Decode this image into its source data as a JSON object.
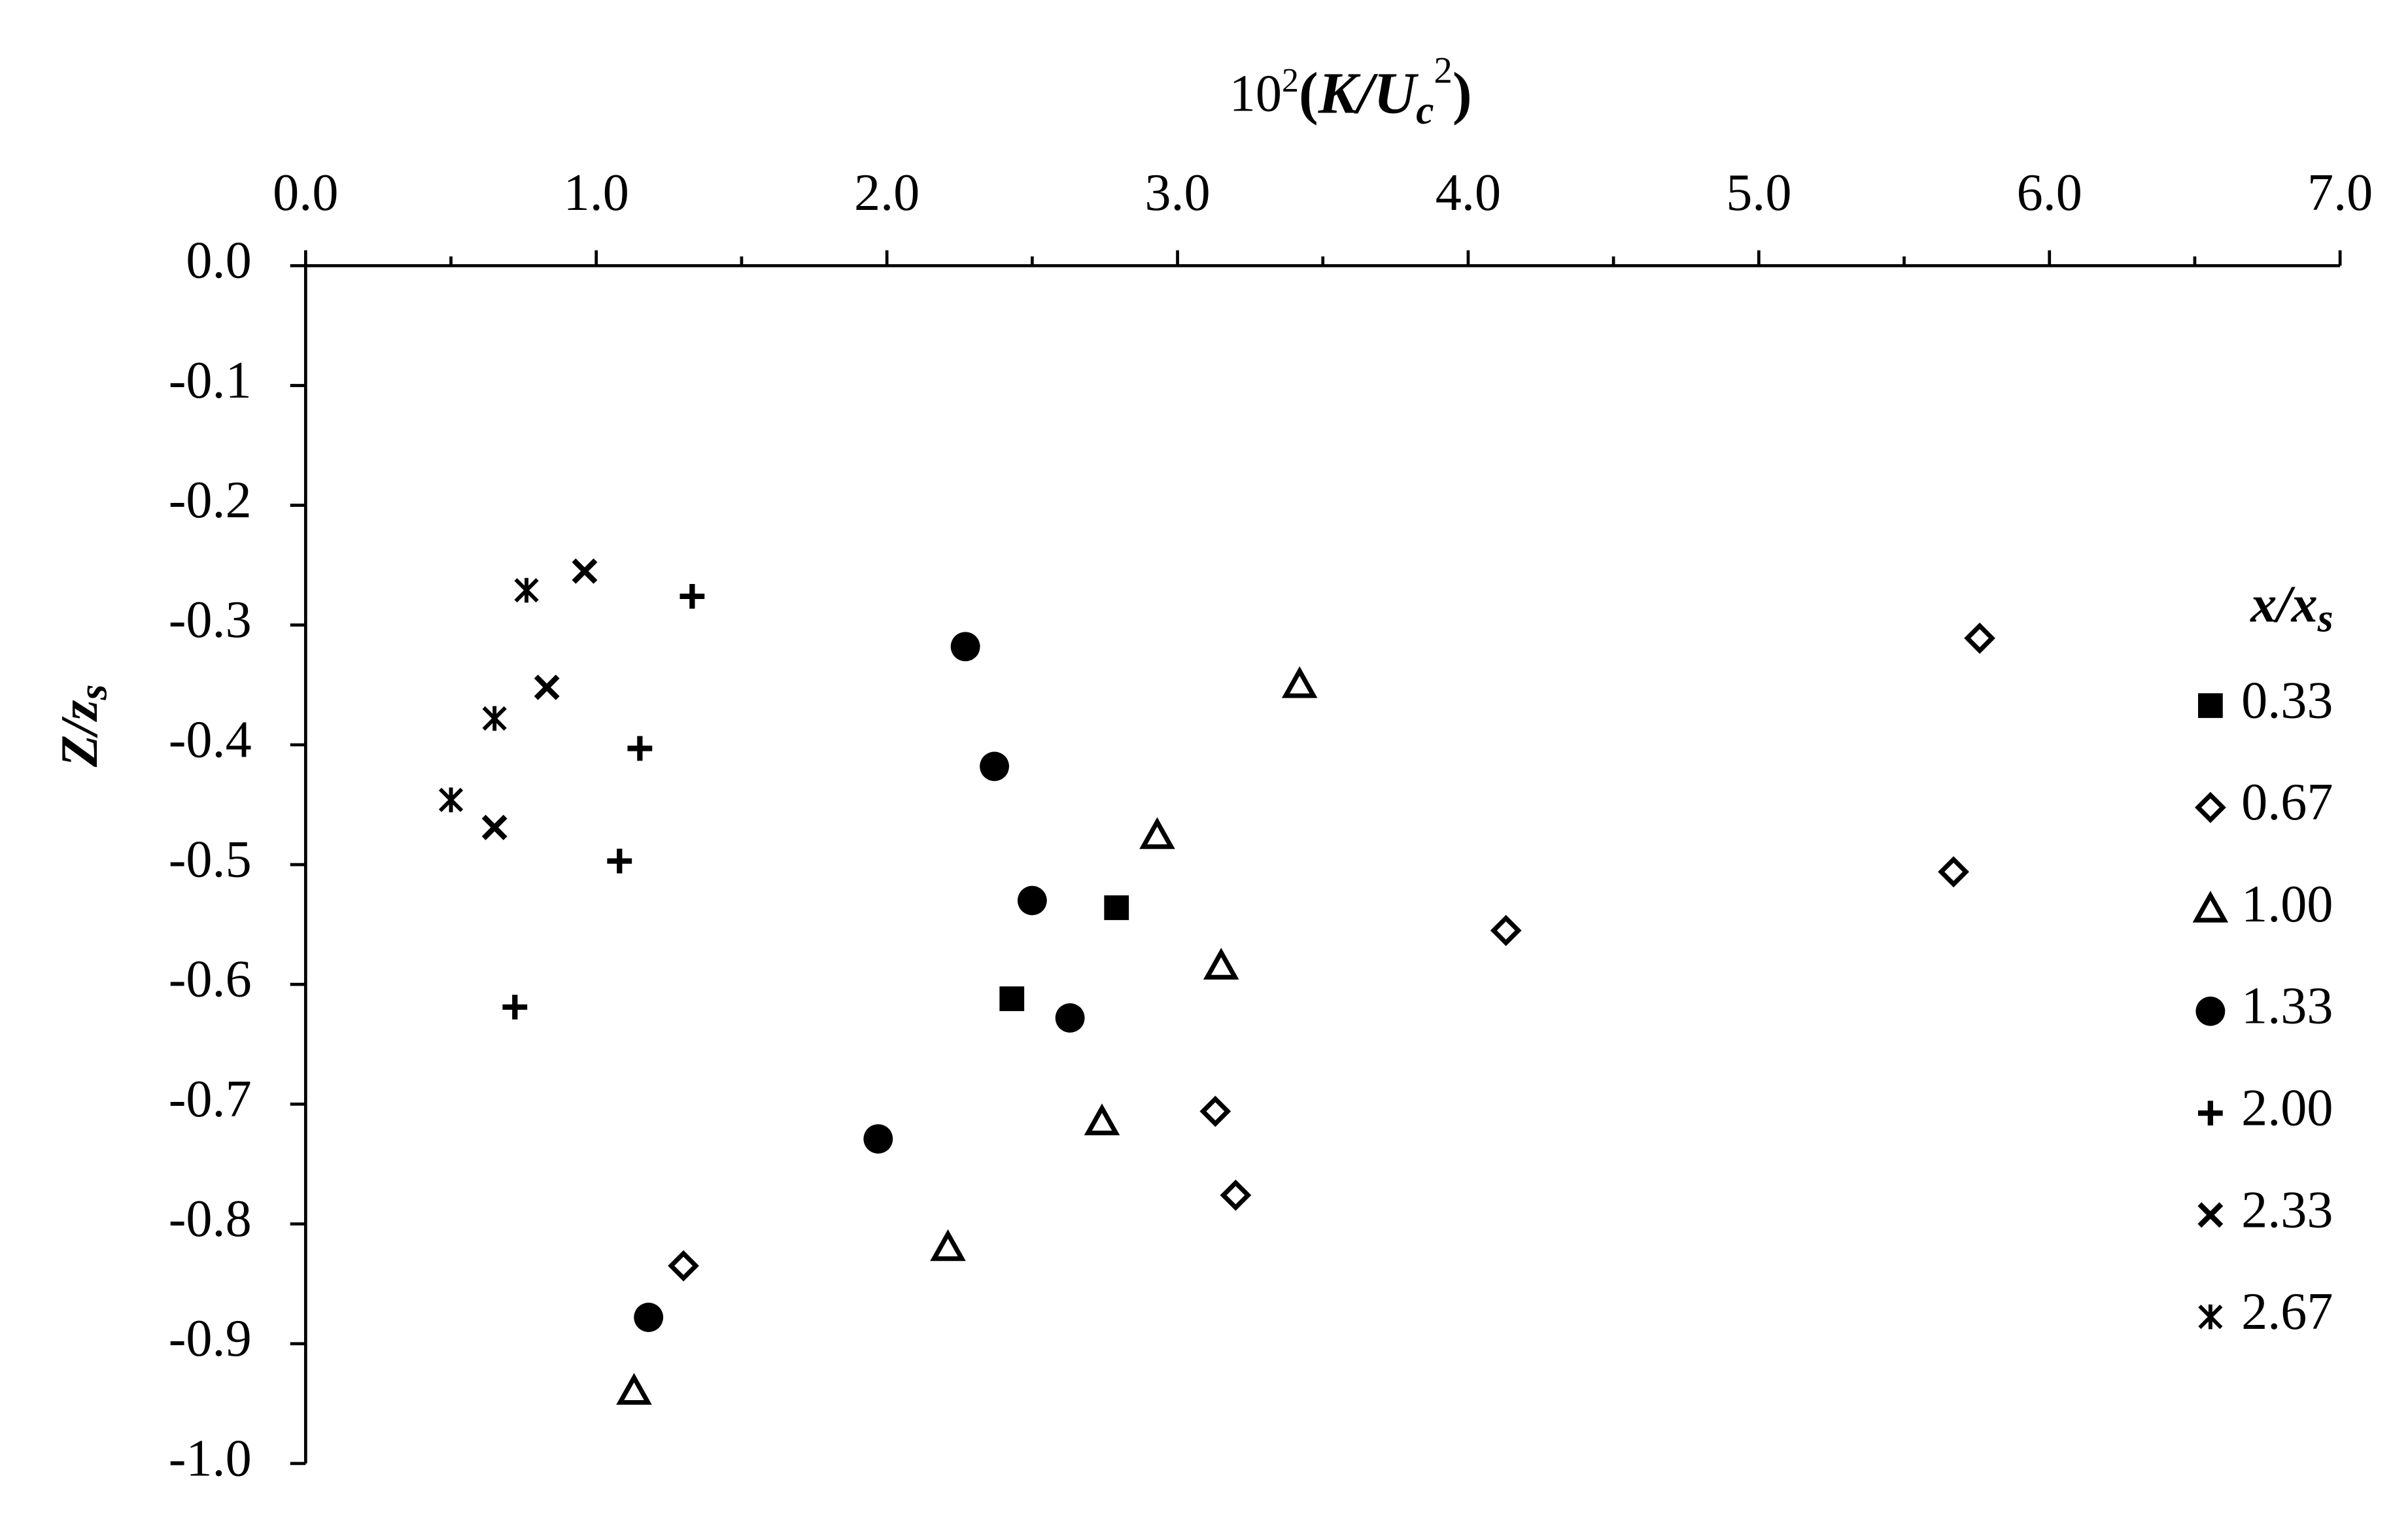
{
  "chart_data": {
    "type": "scatter",
    "x_label": {
      "base": "10",
      "exp": "2",
      "open": "(",
      "var": "K/U",
      "sub": "c",
      "sup": "2",
      "close": ")"
    },
    "y_label": {
      "main": "Z/z",
      "sub": "s"
    },
    "legend_title": {
      "main": "x/x",
      "sub": "s"
    },
    "legend_position": "right",
    "xlim": [
      0,
      7
    ],
    "xticks": [
      {
        "value": 0,
        "label": "0.0"
      },
      {
        "value": 1,
        "label": "1.0"
      },
      {
        "value": 2,
        "label": "2.0"
      },
      {
        "value": 3,
        "label": "3.0"
      },
      {
        "value": 4,
        "label": "4.0"
      },
      {
        "value": 5,
        "label": "5.0"
      },
      {
        "value": 6,
        "label": "6.0"
      },
      {
        "value": 7,
        "label": "7.0"
      }
    ],
    "xminorticks": [
      0.5,
      1.5,
      2.5,
      3.5,
      4.5,
      5.5,
      6.5
    ],
    "ylim": [
      -1,
      0
    ],
    "yticks": [
      {
        "value": 0,
        "label": "0.0"
      },
      -0.1,
      -0.2,
      -0.3,
      -0.4,
      -0.5,
      -0.6,
      -0.7,
      -0.8,
      -0.9,
      {
        "value": -1,
        "label": "-1.0"
      }
    ],
    "series": [
      {
        "name": "0.33",
        "marker": "square",
        "color": "#000000",
        "x": [
          2.79,
          2.43
        ],
        "values": [
          -0.536,
          -0.612
        ]
      },
      {
        "name": "0.67",
        "marker": "diamond",
        "color": "#000000",
        "x": [
          5.76,
          5.67,
          4.13,
          3.13,
          3.2,
          1.3
        ],
        "values": [
          -0.311,
          -0.506,
          -0.555,
          -0.706,
          -0.776,
          -0.835
        ]
      },
      {
        "name": "1.00",
        "marker": "triangle",
        "color": "#000000",
        "x": [
          3.42,
          2.93,
          3.15,
          2.74,
          2.21,
          1.13
        ],
        "values": [
          -0.35,
          -0.476,
          -0.585,
          -0.715,
          -0.82,
          -0.94
        ]
      },
      {
        "name": "1.33",
        "marker": "circle",
        "color": "#000000",
        "x": [
          2.27,
          2.37,
          2.5,
          2.63,
          1.97,
          1.18
        ],
        "values": [
          -0.318,
          -0.418,
          -0.53,
          -0.628,
          -0.729,
          -0.878
        ]
      },
      {
        "name": "2.00",
        "marker": "plus",
        "color": "#000000",
        "x": [
          1.33,
          1.15,
          1.08,
          0.72
        ],
        "values": [
          -0.276,
          -0.403,
          -0.497,
          -0.619
        ]
      },
      {
        "name": "2.33",
        "marker": "cross",
        "color": "#000000",
        "x": [
          0.96,
          0.83,
          0.65
        ],
        "values": [
          -0.255,
          -0.352,
          -0.469
        ]
      },
      {
        "name": "2.67",
        "marker": "star",
        "color": "#000000",
        "x": [
          0.76,
          0.65,
          0.5
        ],
        "values": [
          -0.271,
          -0.378,
          -0.446
        ]
      }
    ]
  }
}
